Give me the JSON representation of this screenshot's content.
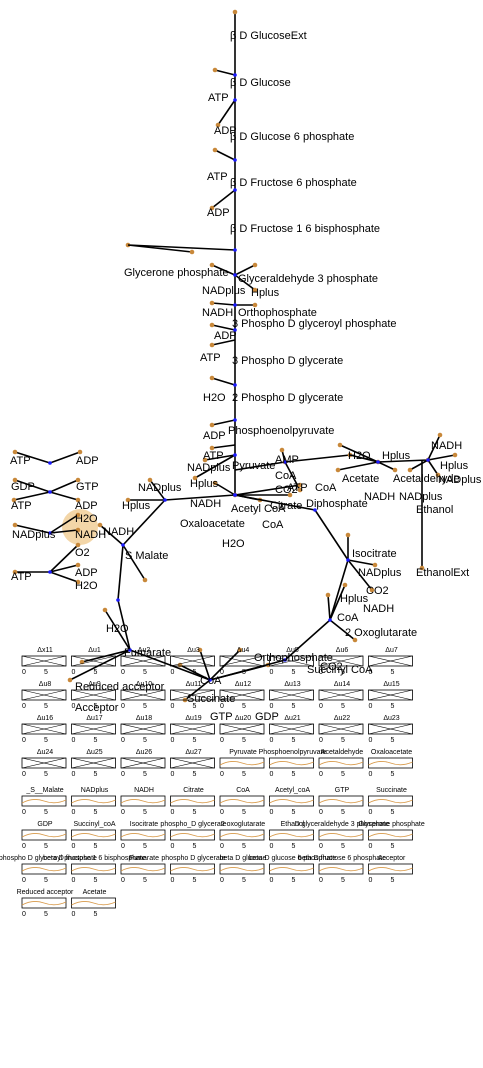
{
  "network": {
    "nodes": [
      "β D GlucoseExt",
      "β D Glucose",
      "ATP",
      "ADP",
      "β D Glucose 6 phosphate",
      "ATP",
      "β D Fructose 6 phosphate",
      "ADP",
      "β D Fructose 1 6 bisphosphate",
      "Glycerone phosphate",
      "Glyceraldehyde 3 phosphate",
      "NADplus",
      "Hplus",
      "Orthophosphate",
      "NADH",
      "3 Phospho D glyceroyl phosphate",
      "ADP",
      "ATP",
      "3 Phospho D glycerate",
      "H2O",
      "2 Phospho D glycerate",
      "Phosphoenolpyruvate",
      "ADP",
      "ATP",
      "Pyruvate",
      "NADplus",
      "Hplus",
      "CoA",
      "CO2",
      "AMP",
      "ATP",
      "NADH",
      "Acetyl CoA",
      "NADplus",
      "Hplus",
      "H2O",
      "Hplus",
      "NADH",
      "Hplus",
      "Acetate",
      "Acetaldehyde",
      "NADplus",
      "CoA",
      "Diphosphate",
      "Citrate",
      "NADH",
      "NADplus",
      "Ethanol",
      "Oxaloacetate",
      "CoA",
      "H2O",
      "EthanolExt",
      "NADH",
      "S Malate",
      "Isocitrate",
      "NADplus",
      "CO2",
      "NADH",
      "Hplus",
      "CoA",
      "2 Oxoglutarate",
      "H2O",
      "Fumarate",
      "Orthophosphate",
      "CoA",
      "Succinyl CoA",
      "CO2",
      "Succinate",
      "GDP",
      "GTP",
      "Reduced acceptor",
      "Acceptor",
      "ATP",
      "ADP",
      "GDP",
      "GTP",
      "ATP",
      "ADP",
      "H2O",
      "NADplus",
      "NADH",
      "O2",
      "ADP",
      "ATP",
      "H2O"
    ]
  },
  "panels": {
    "ticks": [
      0,
      5
    ],
    "titles": [
      "Δx11",
      "Δu1",
      "Δu2",
      "Δu3",
      "Δu4",
      "Δu5",
      "Δu6",
      "Δu7",
      "Δu8",
      "Δu9",
      "Δu10",
      "Δu11",
      "Δu12",
      "Δu13",
      "Δu14",
      "Δu15",
      "Δu16",
      "Δu17",
      "Δu18",
      "Δu19",
      "Δu20",
      "Δu21",
      "Δu22",
      "Δu23",
      "Δu24",
      "Δu25",
      "Δu26",
      "Δu27",
      "Pyruvate",
      "Phosphoenolpyruvate",
      "Acetaldehyde",
      "Oxaloacetate",
      "_S__Malate",
      "NADplus",
      "NADH",
      "Citrate",
      "CoA",
      "Acetyl_coA",
      "GTP",
      "Succinate",
      "GDP",
      "Succinyl_coA",
      "Isocitrate",
      "phospho_D glycerate",
      "2 oxoglutarate",
      "Ethanol",
      "D glyceraldehyde 3 phosphate",
      "Glycerone phosphate",
      "3 phospho D glyceroyl phosphate",
      "beta D fructose 1 6 bisphosphate",
      "Fumarate",
      "phospho D glycerate",
      "beta D glucose",
      "beta D glucose 6 phosphate",
      "beta D fructose 6 phosphate",
      "Acceptor",
      "Reduced acceptor",
      "Acetate"
    ]
  }
}
